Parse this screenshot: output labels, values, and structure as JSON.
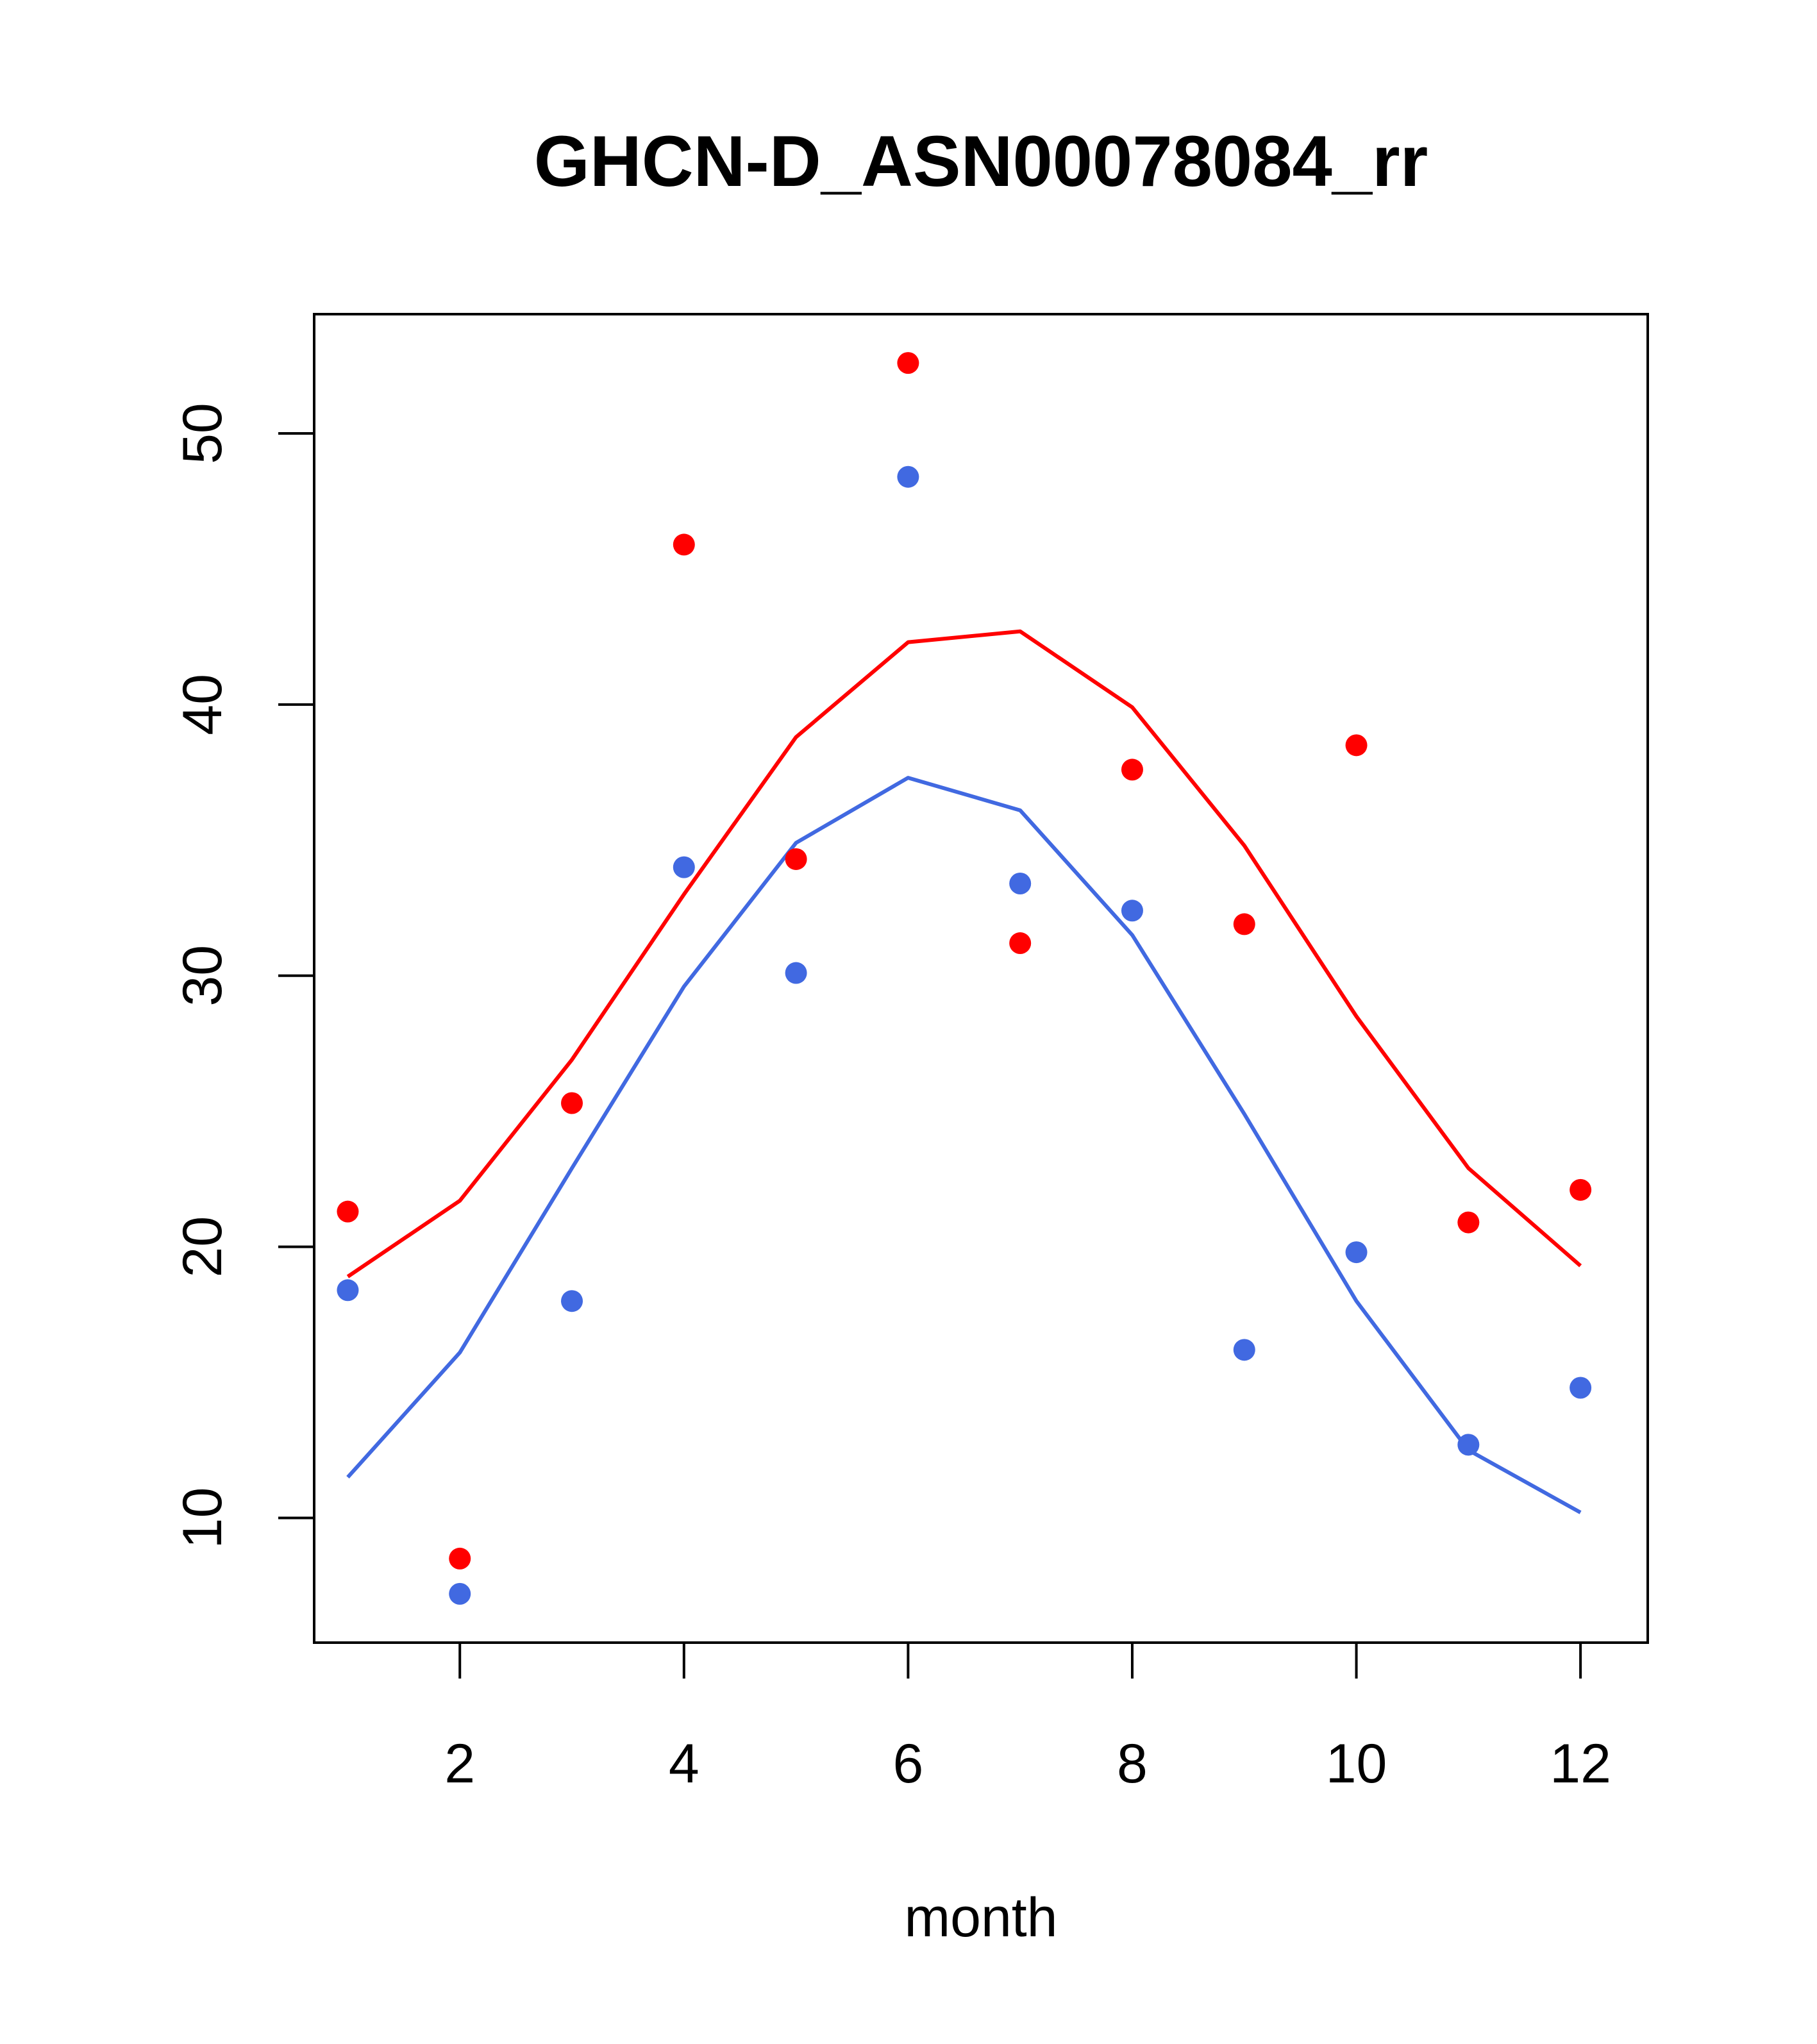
{
  "chart_data": {
    "type": "scatter",
    "title": "GHCN-D_ASN00078084_rr",
    "xlabel": "month",
    "ylabel": "",
    "xlim": [
      0.7,
      12.6
    ],
    "ylim": [
      5.4,
      54.4
    ],
    "xticks": [
      2,
      4,
      6,
      8,
      10,
      12
    ],
    "yticks": [
      10,
      20,
      30,
      40,
      50
    ],
    "grid": false,
    "legend": "none",
    "series": [
      {
        "color": "#ff0000",
        "kind": "points",
        "x": [
          1,
          2,
          3,
          4,
          5,
          6,
          7,
          8,
          9,
          10,
          11,
          12
        ],
        "y": [
          21.3,
          8.5,
          25.3,
          45.9,
          34.3,
          52.6,
          31.2,
          37.6,
          31.9,
          38.5,
          20.9,
          22.1
        ]
      },
      {
        "color": "#4169e1",
        "kind": "points",
        "x": [
          1,
          2,
          3,
          4,
          5,
          6,
          7,
          8,
          9,
          10,
          11,
          12
        ],
        "y": [
          18.4,
          7.2,
          18.0,
          34.0,
          30.1,
          48.4,
          33.4,
          32.4,
          16.2,
          19.8,
          12.7,
          14.8
        ]
      },
      {
        "color": "#ff0000",
        "kind": "line",
        "x": [
          1,
          2,
          3,
          4,
          5,
          6,
          7,
          8,
          9,
          10,
          11,
          12
        ],
        "y": [
          18.9,
          21.7,
          26.9,
          33.0,
          38.8,
          42.3,
          42.7,
          39.9,
          34.8,
          28.5,
          22.9,
          19.3
        ]
      },
      {
        "color": "#4169e1",
        "kind": "line",
        "x": [
          1,
          2,
          3,
          4,
          5,
          6,
          7,
          8,
          9,
          10,
          11,
          12
        ],
        "y": [
          11.5,
          16.1,
          22.9,
          29.6,
          34.9,
          37.3,
          36.1,
          31.5,
          24.9,
          18.0,
          12.5,
          10.2
        ]
      }
    ]
  }
}
